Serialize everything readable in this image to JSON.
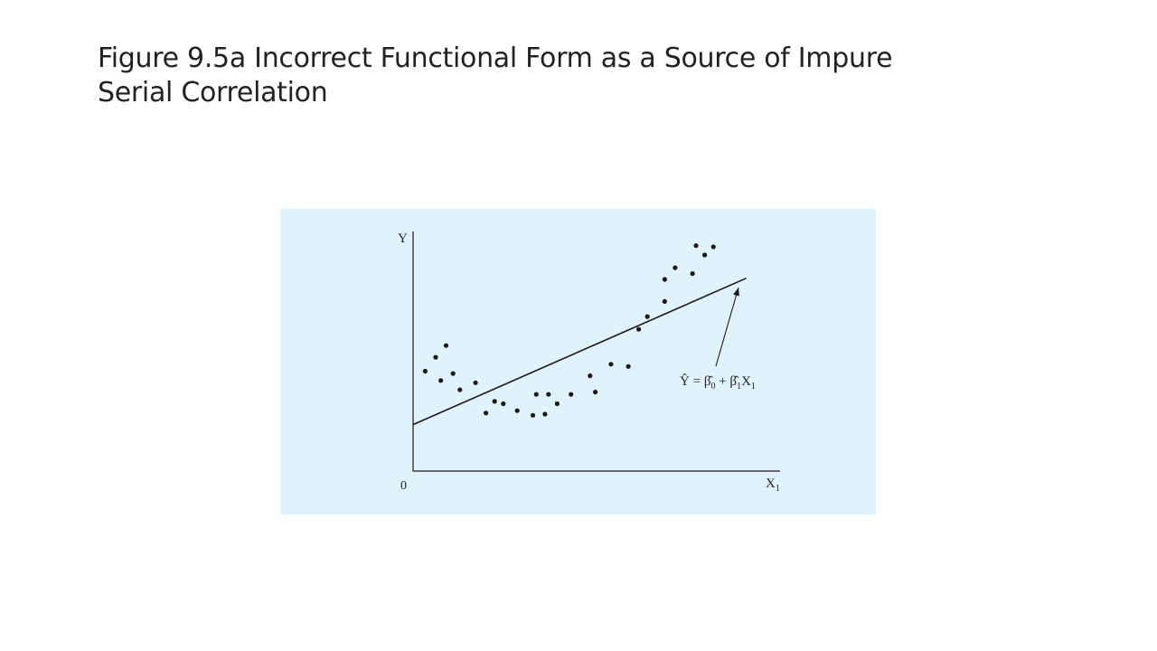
{
  "slide": {
    "title": "Figure 9.5a Incorrect Functional Form as a Source of Impure Serial Correlation"
  },
  "colors": {
    "panel_background": "#e0f2fc",
    "ink": "#1a1a1a"
  },
  "chart_data": {
    "type": "scatter",
    "title": "",
    "xlabel": "X",
    "xlabel_subscript": "1",
    "ylabel": "Y",
    "origin_label": "0",
    "xlim": [
      0,
      100
    ],
    "ylim": [
      0,
      100
    ],
    "grid": false,
    "series": [
      {
        "values": [
          {
            "x": 3.5,
            "y": 43
          },
          {
            "x": 6.5,
            "y": 49
          },
          {
            "x": 8,
            "y": 39
          },
          {
            "x": 9.5,
            "y": 54
          },
          {
            "x": 11.5,
            "y": 42
          },
          {
            "x": 13.5,
            "y": 35
          },
          {
            "x": 18,
            "y": 38
          },
          {
            "x": 21,
            "y": 25
          },
          {
            "x": 23.5,
            "y": 30
          },
          {
            "x": 26,
            "y": 29
          },
          {
            "x": 30,
            "y": 26
          },
          {
            "x": 34.5,
            "y": 24
          },
          {
            "x": 35.5,
            "y": 33
          },
          {
            "x": 38,
            "y": 24.5
          },
          {
            "x": 39,
            "y": 33
          },
          {
            "x": 41.5,
            "y": 29
          },
          {
            "x": 45.5,
            "y": 33
          },
          {
            "x": 51,
            "y": 41
          },
          {
            "x": 52.5,
            "y": 34
          },
          {
            "x": 57,
            "y": 46
          },
          {
            "x": 62,
            "y": 45
          },
          {
            "x": 65,
            "y": 61
          },
          {
            "x": 67.5,
            "y": 66.5
          },
          {
            "x": 72.5,
            "y": 73
          },
          {
            "x": 72.5,
            "y": 82.5
          },
          {
            "x": 75.5,
            "y": 87.5
          },
          {
            "x": 80.5,
            "y": 85
          },
          {
            "x": 81.5,
            "y": 97
          },
          {
            "x": 84,
            "y": 93
          },
          {
            "x": 86.5,
            "y": 96.5
          }
        ]
      }
    ],
    "fitted_line": {
      "x": [
        0,
        96
      ],
      "y": [
        20,
        83
      ]
    },
    "annotation": {
      "hat_y": "Ŷ",
      "equals": " = ",
      "beta": "β̂",
      "sub0": "0",
      "plus": " + ",
      "sub1": "1",
      "x": "X",
      "xsub": "1"
    }
  }
}
